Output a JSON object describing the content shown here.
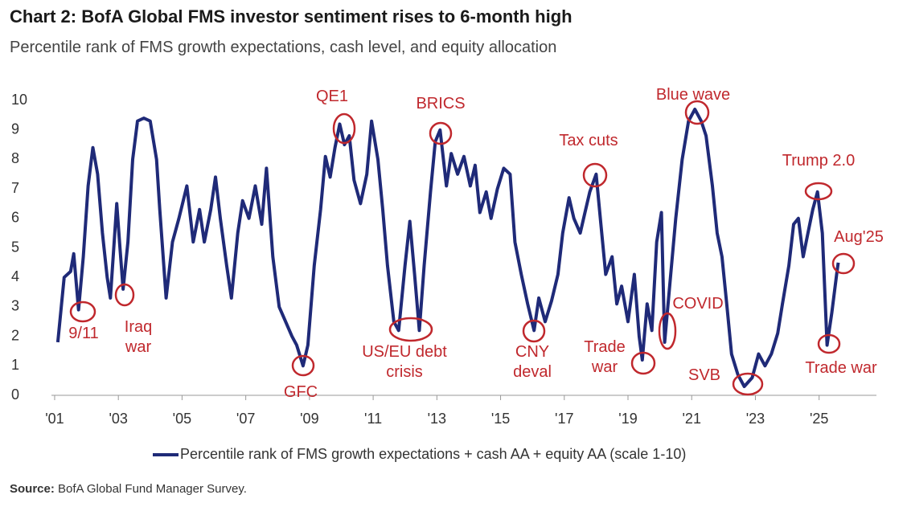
{
  "chart_data": {
    "type": "line",
    "title": "Chart 2: BofA Global FMS investor sentiment rises to 6-month high",
    "subtitle": "Percentile rank of FMS growth expectations, cash level, and equity allocation",
    "source_label": "Source:",
    "source": "BofA Global Fund Manager Survey.",
    "xlim": [
      2000.9,
      2026.8
    ],
    "xticks": [
      {
        "value": 2001,
        "label": "'01"
      },
      {
        "value": 2003,
        "label": "'03"
      },
      {
        "value": 2005,
        "label": "'05"
      },
      {
        "value": 2007,
        "label": "'07"
      },
      {
        "value": 2009,
        "label": "'09"
      },
      {
        "value": 2011,
        "label": "'11"
      },
      {
        "value": 2013,
        "label": "'13"
      },
      {
        "value": 2015,
        "label": "'15"
      },
      {
        "value": 2017,
        "label": "'17"
      },
      {
        "value": 2019,
        "label": "'19"
      },
      {
        "value": 2021,
        "label": "'21"
      },
      {
        "value": 2023,
        "label": "'23"
      },
      {
        "value": 2025,
        "label": "'25"
      }
    ],
    "ylim": [
      0,
      10
    ],
    "yticks": [
      0,
      1,
      2,
      3,
      4,
      5,
      6,
      7,
      8,
      9,
      10
    ],
    "grid": false,
    "legend": "bottom",
    "x": [
      2001.1,
      2001.3,
      2001.5,
      2001.6,
      2001.75,
      2001.9,
      2002.05,
      2002.2,
      2002.35,
      2002.5,
      2002.65,
      2002.75,
      2002.95,
      2003.05,
      2003.15,
      2003.3,
      2003.45,
      2003.6,
      2003.8,
      2004.0,
      2004.2,
      2004.3,
      2004.5,
      2004.7,
      2004.9,
      2005.15,
      2005.35,
      2005.55,
      2005.7,
      2005.9,
      2006.05,
      2006.2,
      2006.4,
      2006.55,
      2006.75,
      2006.9,
      2007.1,
      2007.3,
      2007.5,
      2007.65,
      2007.85,
      2008.05,
      2008.25,
      2008.45,
      2008.6,
      2008.8,
      2008.95,
      2009.15,
      2009.35,
      2009.5,
      2009.65,
      2009.8,
      2009.95,
      2010.1,
      2010.25,
      2010.4,
      2010.6,
      2010.8,
      2010.95,
      2011.15,
      2011.3,
      2011.45,
      2011.65,
      2011.8,
      2012.0,
      2012.15,
      2012.3,
      2012.45,
      2012.6,
      2012.8,
      2012.95,
      2013.1,
      2013.3,
      2013.45,
      2013.65,
      2013.85,
      2014.05,
      2014.2,
      2014.35,
      2014.55,
      2014.7,
      2014.9,
      2015.1,
      2015.3,
      2015.45,
      2015.65,
      2015.85,
      2016.05,
      2016.2,
      2016.4,
      2016.6,
      2016.8,
      2016.95,
      2017.15,
      2017.3,
      2017.5,
      2017.65,
      2017.8,
      2018.0,
      2018.15,
      2018.3,
      2018.5,
      2018.65,
      2018.8,
      2019.0,
      2019.2,
      2019.35,
      2019.45,
      2019.6,
      2019.75,
      2019.9,
      2020.05,
      2020.15,
      2020.3,
      2020.5,
      2020.7,
      2020.9,
      2021.1,
      2021.3,
      2021.45,
      2021.65,
      2021.8,
      2021.95,
      2022.1,
      2022.25,
      2022.45,
      2022.65,
      2022.9,
      2023.1,
      2023.3,
      2023.5,
      2023.7,
      2023.85,
      2024.05,
      2024.2,
      2024.35,
      2024.5,
      2024.65,
      2024.8,
      2024.95,
      2025.1,
      2025.25,
      2025.4,
      2025.55,
      2025.6
    ],
    "series": [
      {
        "name": "Percentile rank of FMS growth expectations + cash AA + equity AA (scale 1-10)",
        "color": "#1f2a78",
        "values": [
          1.8,
          4.0,
          4.2,
          4.8,
          2.9,
          4.7,
          7.1,
          8.4,
          7.5,
          5.5,
          4.0,
          3.3,
          6.5,
          5.0,
          3.6,
          5.2,
          8.0,
          9.3,
          9.4,
          9.3,
          8.0,
          6.3,
          3.3,
          5.2,
          6.0,
          7.1,
          5.2,
          6.3,
          5.2,
          6.3,
          7.4,
          6.0,
          4.4,
          3.3,
          5.5,
          6.6,
          6.0,
          7.1,
          5.8,
          7.7,
          4.7,
          3.0,
          2.5,
          2.0,
          1.7,
          1.0,
          1.7,
          4.4,
          6.3,
          8.1,
          7.4,
          8.4,
          9.2,
          8.5,
          8.8,
          7.3,
          6.5,
          7.5,
          9.3,
          8.0,
          6.3,
          4.4,
          2.5,
          2.2,
          4.4,
          5.9,
          4.1,
          2.2,
          4.4,
          6.9,
          8.6,
          9.0,
          7.1,
          8.2,
          7.5,
          8.1,
          7.1,
          7.8,
          6.2,
          6.9,
          6.0,
          7.0,
          7.7,
          7.5,
          5.2,
          4.1,
          3.1,
          2.2,
          3.3,
          2.5,
          3.2,
          4.1,
          5.5,
          6.7,
          6.0,
          5.5,
          6.2,
          6.9,
          7.5,
          5.8,
          4.1,
          4.7,
          3.1,
          3.7,
          2.5,
          4.1,
          2.0,
          1.2,
          3.1,
          2.2,
          5.2,
          6.2,
          1.8,
          3.6,
          6.0,
          8.0,
          9.3,
          9.7,
          9.3,
          8.8,
          7.1,
          5.5,
          4.7,
          3.1,
          1.4,
          0.7,
          0.3,
          0.6,
          1.4,
          1.0,
          1.4,
          2.1,
          3.1,
          4.4,
          5.8,
          6.0,
          4.7,
          5.5,
          6.3,
          6.9,
          5.5,
          1.7,
          2.8,
          4.1,
          4.5
        ]
      }
    ],
    "annotations": [
      "9/11",
      "Iraq war",
      "GFC",
      "QE1",
      "US/EU debt crisis",
      "BRICS",
      "CNY deval",
      "Tax cuts",
      "Trade war",
      "COVID",
      "Blue wave",
      "SVB",
      "Trump 2.0",
      "Aug'25",
      "Trade war"
    ],
    "annotation_color": "#c0282d"
  }
}
